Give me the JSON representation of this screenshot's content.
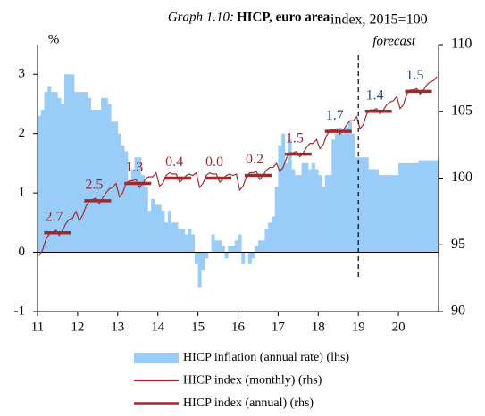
{
  "chart_data": {
    "type": "combo",
    "title_prefix": "Graph 1.10:",
    "title": "HICP, euro area",
    "y_label": "%",
    "y2_label": "index, 2015=100",
    "xlim": [
      11,
      21
    ],
    "xticks": [
      11,
      12,
      13,
      14,
      15,
      16,
      17,
      18,
      19,
      20
    ],
    "ylim": [
      -1,
      3.5
    ],
    "yticks": [
      -1,
      0,
      1,
      2,
      3
    ],
    "y2lim": [
      90,
      110
    ],
    "y2ticks": [
      90,
      95,
      100,
      105,
      110
    ],
    "forecast_label": "forecast",
    "forecast_x": 19,
    "x": [
      11,
      11.083,
      11.167,
      11.25,
      11.333,
      11.417,
      11.5,
      11.583,
      11.667,
      11.75,
      11.833,
      11.917,
      12,
      12.083,
      12.167,
      12.25,
      12.333,
      12.417,
      12.5,
      12.583,
      12.667,
      12.75,
      12.833,
      12.917,
      13,
      13.083,
      13.167,
      13.25,
      13.333,
      13.417,
      13.5,
      13.583,
      13.667,
      13.75,
      13.833,
      13.917,
      14,
      14.083,
      14.167,
      14.25,
      14.333,
      14.417,
      14.5,
      14.583,
      14.667,
      14.75,
      14.833,
      14.917,
      15,
      15.083,
      15.167,
      15.25,
      15.333,
      15.417,
      15.5,
      15.583,
      15.667,
      15.75,
      15.833,
      15.917,
      16,
      16.083,
      16.167,
      16.25,
      16.333,
      16.417,
      16.5,
      16.583,
      16.667,
      16.75,
      16.833,
      16.917,
      17,
      17.083,
      17.167,
      17.25,
      17.333,
      17.417,
      17.5,
      17.583,
      17.667,
      17.75,
      17.833,
      17.917,
      18,
      18.083,
      18.167,
      18.25,
      18.333,
      18.417,
      18.5,
      18.583,
      18.667,
      18.75,
      18.833,
      18.917,
      19,
      19.083,
      19.167,
      19.25,
      19.333,
      19.417,
      19.5,
      19.583,
      19.667,
      19.75,
      19.833,
      19.917,
      20,
      20.083,
      20.167,
      20.25,
      20.333,
      20.417,
      20.5,
      20.583,
      20.667,
      20.75,
      20.833,
      20.917
    ],
    "series": [
      {
        "name": "HICP inflation (annual rate) (lhs)",
        "type": "bar",
        "color": "#99ccf7",
        "values": [
          2.3,
          2.4,
          2.7,
          2.8,
          2.7,
          2.7,
          2.6,
          2.5,
          3.0,
          3.0,
          3.0,
          2.7,
          2.7,
          2.7,
          2.7,
          2.6,
          2.4,
          2.4,
          2.4,
          2.6,
          2.6,
          2.5,
          2.2,
          2.2,
          2.0,
          1.8,
          1.7,
          1.2,
          1.4,
          1.6,
          1.6,
          1.3,
          1.1,
          0.7,
          0.9,
          0.8,
          0.8,
          0.7,
          0.5,
          0.7,
          0.5,
          0.5,
          0.4,
          0.4,
          0.3,
          0.4,
          0.3,
          -0.2,
          -0.6,
          -0.3,
          -0.1,
          0.0,
          0.3,
          0.2,
          0.2,
          0.1,
          -0.1,
          0.1,
          0.1,
          0.2,
          0.3,
          -0.2,
          0.0,
          -0.2,
          -0.1,
          0.1,
          0.2,
          0.2,
          0.4,
          0.5,
          0.6,
          1.1,
          1.8,
          2.0,
          1.5,
          1.9,
          1.4,
          1.3,
          1.3,
          1.5,
          1.5,
          1.4,
          1.5,
          1.4,
          1.3,
          1.1,
          1.3,
          1.3,
          1.9,
          2.0,
          2.1,
          2.0,
          2.1,
          2.2,
          2.0,
          1.6,
          1.6,
          1.6,
          1.6,
          1.4,
          1.4,
          1.4,
          1.3,
          1.3,
          1.3,
          1.3,
          1.3,
          1.3,
          1.5,
          1.5,
          1.5,
          1.5,
          1.5,
          1.5,
          1.55,
          1.55,
          1.55,
          1.55,
          1.55,
          1.55
        ]
      },
      {
        "name": "HICP index (monthly) (rhs)",
        "type": "line",
        "axis": "y2",
        "color": "#9e3034",
        "values": [
          94.2,
          94.6,
          95.4,
          95.8,
          95.9,
          96.1,
          95.7,
          96.1,
          96.6,
          96.9,
          97.0,
          97.5,
          96.8,
          97.2,
          97.9,
          98.3,
          98.4,
          98.5,
          98.1,
          98.5,
          98.9,
          99.2,
          99.3,
          99.6,
          98.6,
          98.9,
          99.6,
          99.8,
          99.8,
          99.9,
          99.3,
          99.6,
          100.0,
          100.1,
          100.1,
          100.4,
          99.4,
          99.6,
          100.2,
          100.4,
          100.3,
          100.3,
          99.7,
          99.9,
          100.2,
          100.3,
          100.2,
          100.4,
          99.3,
          99.6,
          100.2,
          100.4,
          100.3,
          100.3,
          99.7,
          99.9,
          100.2,
          100.3,
          100.2,
          100.3,
          99.1,
          99.4,
          100.1,
          100.4,
          100.4,
          100.5,
          99.9,
          100.2,
          100.6,
          100.8,
          100.8,
          101.1,
          100.5,
          100.8,
          101.5,
          101.9,
          101.9,
          102.0,
          101.6,
          101.9,
          102.3,
          102.6,
          102.6,
          102.9,
          102.2,
          102.5,
          103.2,
          103.6,
          103.6,
          103.7,
          103.3,
          103.6,
          104.0,
          104.3,
          104.3,
          104.6,
          103.7,
          104.0,
          104.8,
          105.1,
          105.1,
          105.2,
          104.8,
          105.1,
          105.5,
          105.7,
          105.8,
          106.1,
          105.2,
          105.5,
          106.3,
          106.6,
          106.6,
          106.7,
          106.3,
          106.6,
          107.0,
          107.2,
          107.3,
          107.6
        ]
      },
      {
        "name": "HICP index (annual) (rhs)",
        "type": "step",
        "axis": "y2",
        "color": "#9b2b2e",
        "x": [
          11.5,
          12.5,
          13.5,
          14.5,
          15.5,
          16.5,
          17.5,
          18.5,
          19.5,
          20.5
        ],
        "values": [
          95.9,
          98.3,
          99.6,
          100.0,
          100.0,
          100.2,
          101.8,
          103.5,
          105.0,
          106.5
        ],
        "annotations": [
          {
            "text": "2.7",
            "color": "#9b2b2e"
          },
          {
            "text": "2.5",
            "color": "#9b2b2e"
          },
          {
            "text": "1.3",
            "color": "#9b2b2e"
          },
          {
            "text": "0.4",
            "color": "#9b2b2e"
          },
          {
            "text": "0.0",
            "color": "#9b2b2e"
          },
          {
            "text": "0.2",
            "color": "#9b2b2e"
          },
          {
            "text": "1.5",
            "color": "#9b2b2e"
          },
          {
            "text": "1.7",
            "color": "#2c4a78"
          },
          {
            "text": "1.4",
            "color": "#2c4a78"
          },
          {
            "text": "1.5",
            "color": "#2c4a78"
          }
        ]
      }
    ]
  }
}
